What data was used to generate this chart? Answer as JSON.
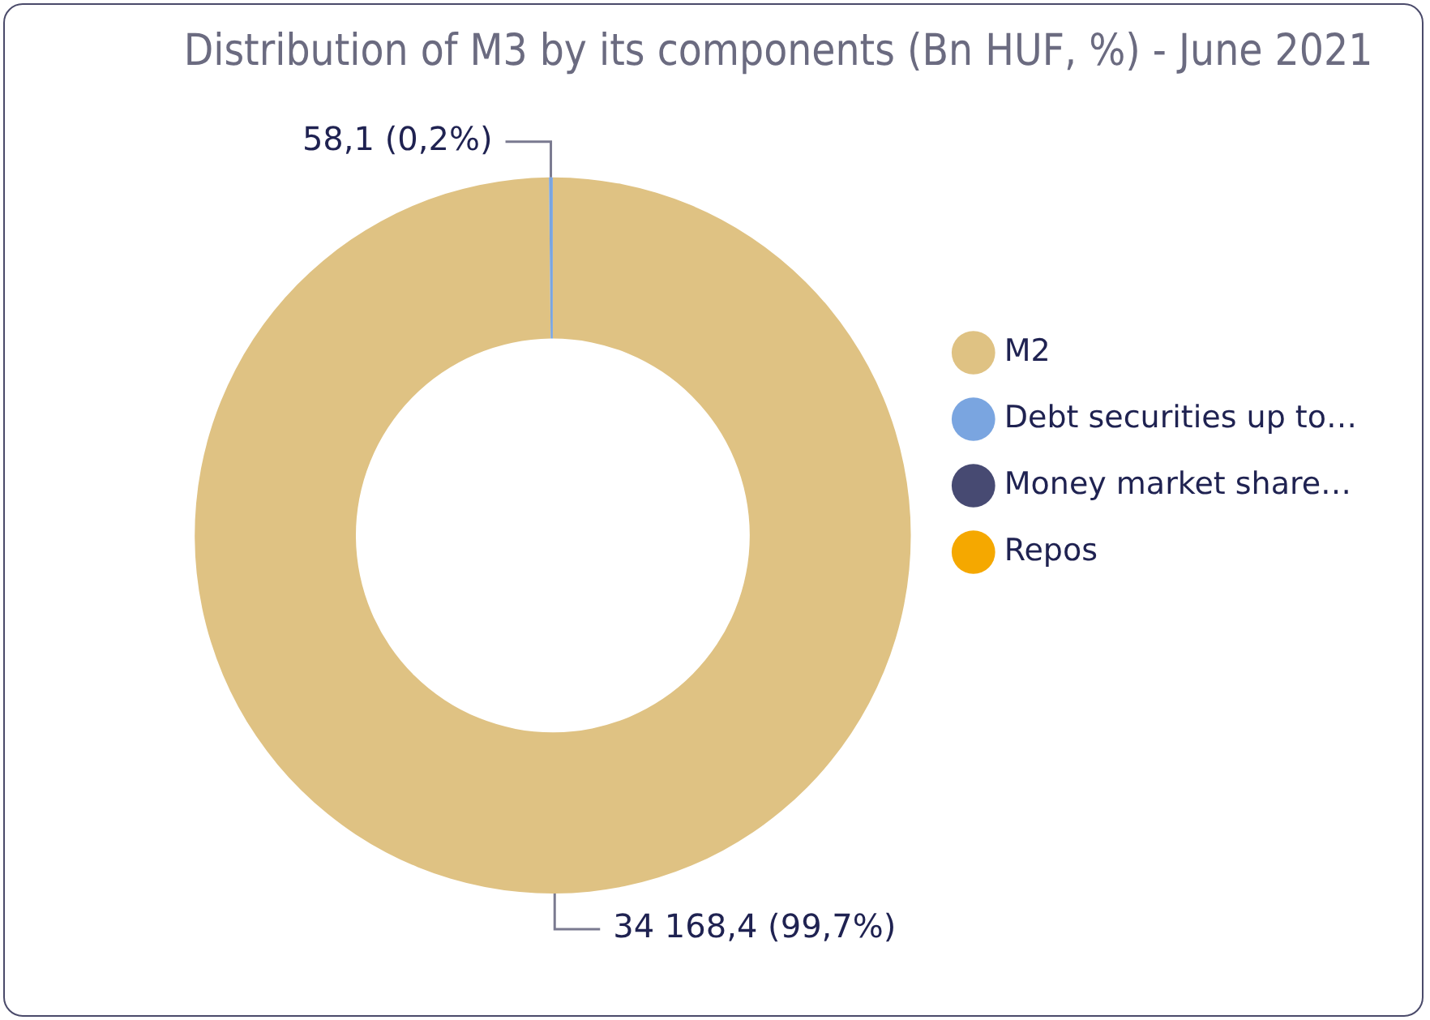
{
  "chart_data": {
    "type": "donut",
    "title": "Distribution of M3 by its components (Bn HUF, %) - June 2021",
    "categories": [
      "M2",
      "Debt securities up to…",
      "Money market share…",
      "Repos"
    ],
    "values": [
      34168.4,
      58.1,
      0,
      0
    ],
    "colors": [
      "#dfc283",
      "#7aa5e0",
      "#474a72",
      "#f5a800"
    ],
    "value_labels": [
      "34 168,4 (99,7%)",
      "58,1 (0,2%)",
      null,
      null
    ],
    "legend": "right"
  }
}
